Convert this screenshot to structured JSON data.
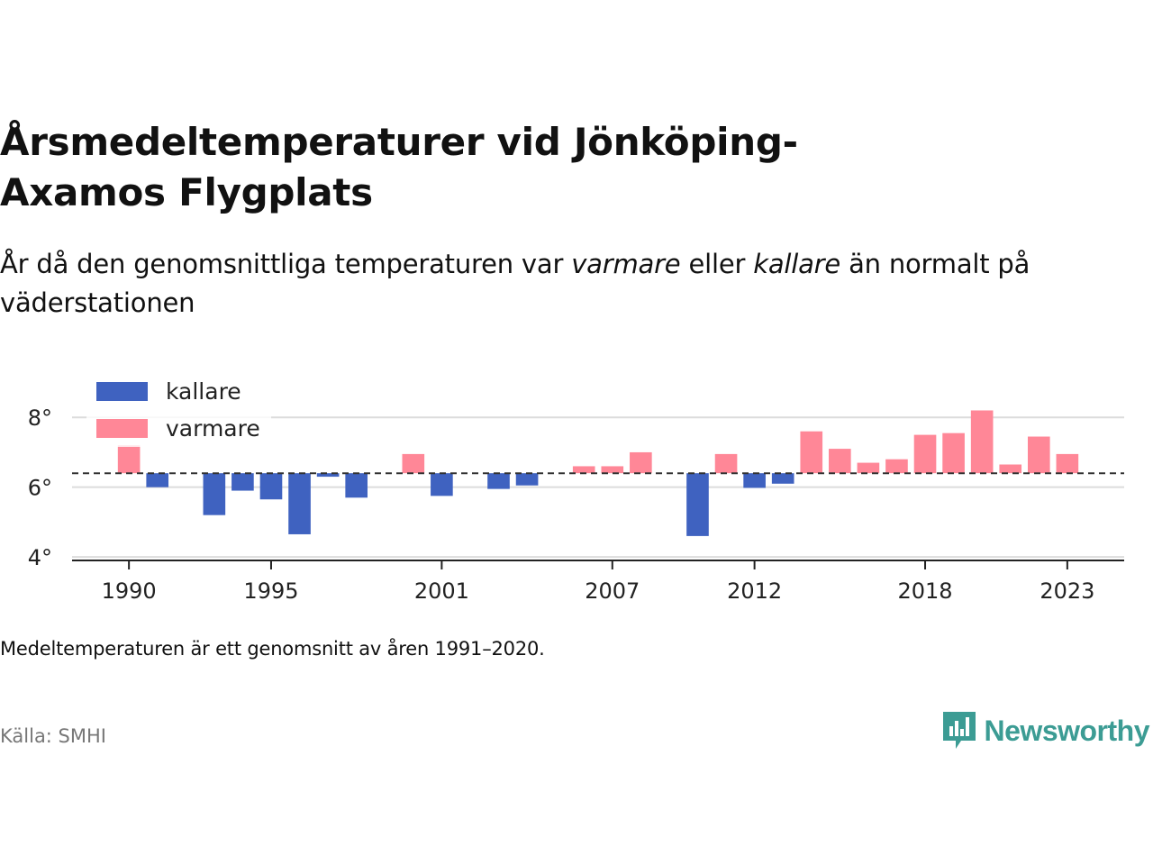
{
  "title": "Årsmedeltemperaturer vid Jönköping-Axamos Flygplats",
  "subtitle": {
    "part1": "År då den genomsnittliga temperaturen var ",
    "warmer_word": "varmare",
    "part2": " eller ",
    "colder_word": "kallare",
    "part3": " än normalt på väderstationen"
  },
  "note": "Medeltemperaturen är ett genomsnitt av åren 1991–2020.",
  "source": "Källa: SMHI",
  "logo": {
    "text": "Newsworthy",
    "icon": "bar-chart-speech-bubble-icon",
    "color": "#3c9c94"
  },
  "chart_data": {
    "type": "bar",
    "title": "",
    "xlabel": "",
    "ylabel": "",
    "baseline": 6.4,
    "baseline_style": "dashed",
    "ylim": [
      3.9,
      8.6
    ],
    "yticks": [
      4,
      6,
      8
    ],
    "ytick_suffix": "°",
    "xticks": [
      1990,
      1995,
      2001,
      2007,
      2012,
      2018,
      2023
    ],
    "xlim": [
      1988,
      2025
    ],
    "grid": true,
    "legend_position": "top-left",
    "colors": {
      "kallare": "#3f62c0",
      "varmare": "#ff8797"
    },
    "series": [
      {
        "name": "kallare",
        "color": "#3f62c0"
      },
      {
        "name": "varmare",
        "color": "#ff8797"
      }
    ],
    "x": [
      1990,
      1991,
      1992,
      1993,
      1994,
      1995,
      1996,
      1997,
      1998,
      1999,
      2000,
      2001,
      2002,
      2003,
      2004,
      2005,
      2006,
      2007,
      2008,
      2009,
      2010,
      2011,
      2012,
      2013,
      2014,
      2015,
      2016,
      2017,
      2018,
      2019,
      2020,
      2021,
      2022,
      2023
    ],
    "values": [
      7.2,
      6.0,
      null,
      5.2,
      5.9,
      5.65,
      4.65,
      6.3,
      5.7,
      null,
      6.95,
      5.75,
      null,
      5.95,
      6.05,
      null,
      6.6,
      6.6,
      7.0,
      null,
      4.6,
      6.95,
      5.98,
      6.1,
      7.6,
      7.1,
      6.7,
      6.8,
      7.5,
      7.55,
      8.2,
      6.65,
      7.45,
      6.95
    ]
  }
}
